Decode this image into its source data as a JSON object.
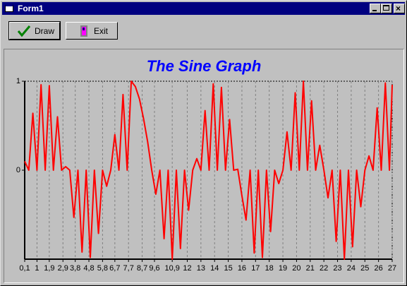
{
  "window": {
    "title": "Form1"
  },
  "toolbar": {
    "buttons": [
      "Draw",
      "Exit"
    ]
  },
  "chart_data": {
    "type": "line",
    "title": "The Sine Graph",
    "x": [
      0.1,
      0.4,
      0.7,
      1.0,
      1.3,
      1.6,
      1.9,
      2.2,
      2.5,
      2.8,
      3.1,
      3.4,
      3.7,
      4.0,
      4.3,
      4.6,
      4.9,
      5.2,
      5.5,
      5.8,
      6.1,
      6.4,
      6.7,
      7.0,
      7.3,
      7.6,
      7.9,
      8.2,
      8.5,
      8.8,
      9.1,
      9.4,
      9.7,
      10.0,
      10.3,
      10.6,
      10.9,
      11.2,
      11.5,
      11.8,
      12.1,
      12.4,
      12.7,
      13.0,
      13.3,
      13.6,
      13.9,
      14.2,
      14.5,
      14.8,
      15.1,
      15.4,
      15.7,
      16.0,
      16.3,
      16.6,
      16.9,
      17.2,
      17.5,
      17.8,
      18.1,
      18.4,
      18.7,
      19.0,
      19.3,
      19.6,
      19.9,
      20.2,
      20.5,
      20.8,
      21.1,
      21.4,
      21.7,
      22.0,
      22.3,
      22.6,
      22.9,
      23.2,
      23.5,
      23.8,
      24.1,
      24.4,
      24.7,
      25.0,
      25.3,
      25.6,
      25.9,
      26.2,
      26.5,
      26.8,
      27
    ],
    "series": [
      {
        "color": "#ff0000",
        "values": [
          0.1,
          0,
          0.64,
          0,
          0.96,
          0,
          0.95,
          0,
          0.6,
          0,
          0.04,
          0,
          -0.53,
          0,
          -0.92,
          0,
          -0.98,
          0,
          -0.71,
          0,
          -0.18,
          0,
          0.4,
          0,
          0.85,
          0,
          1.0,
          0.94,
          0.8,
          0.58,
          0.32,
          0,
          -0.27,
          0,
          -0.77,
          0,
          -1.0,
          0,
          -0.88,
          0,
          -0.45,
          0,
          0.13,
          0,
          0.67,
          0,
          0.97,
          0,
          0.93,
          0,
          0.57,
          0,
          0.01,
          -0.29,
          -0.56,
          0,
          -0.93,
          0,
          -0.98,
          0,
          -0.69,
          0,
          -0.15,
          0,
          0.43,
          0,
          0.87,
          0,
          1.0,
          0,
          0.78,
          0,
          0.28,
          0,
          -0.31,
          0,
          -0.8,
          0,
          -1.0,
          0,
          -0.86,
          0,
          -0.41,
          0,
          0.16,
          0,
          0.7,
          0,
          0.98,
          0,
          0.96
        ]
      }
    ],
    "xlim": [
      0.1,
      27
    ],
    "xticks": [
      {
        "value": 0.1,
        "label": "0,1"
      },
      1,
      {
        "value": 1.9,
        "label": "1,9"
      },
      {
        "value": 2.9,
        "label": "2,9"
      },
      {
        "value": 3.8,
        "label": "3,8"
      },
      {
        "value": 4.8,
        "label": "4,8"
      },
      {
        "value": 5.8,
        "label": "5,8"
      },
      {
        "value": 6.7,
        "label": "6,7"
      },
      {
        "value": 7.7,
        "label": "7,7"
      },
      {
        "value": 8.7,
        "label": "8,7"
      },
      {
        "value": 9.6,
        "label": "9,6"
      },
      {
        "value": 10.9,
        "label": "10,9"
      },
      12,
      13,
      14,
      15,
      16,
      17,
      18,
      19,
      20,
      21,
      22,
      23,
      24,
      25,
      26,
      27
    ],
    "ylim": [
      -1,
      1
    ],
    "yticks": [
      0,
      1
    ],
    "grid": true
  }
}
